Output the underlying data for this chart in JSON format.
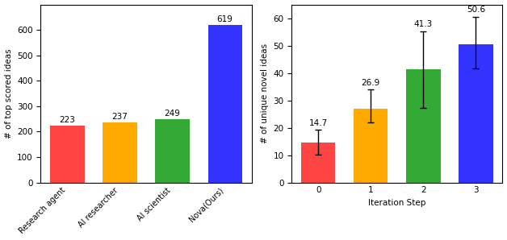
{
  "left": {
    "categories": [
      "Research agent",
      "AI researcher",
      "AI scientist",
      "Nova(Ours)"
    ],
    "values": [
      223,
      237,
      249,
      619
    ],
    "colors": [
      "#ff4444",
      "#ffaa00",
      "#33aa33",
      "#3333ff"
    ],
    "ylabel": "# of top scored ideas",
    "ylim": [
      0,
      700
    ],
    "yticks": [
      0,
      100,
      200,
      300,
      400,
      500,
      600
    ]
  },
  "right": {
    "categories": [
      "0",
      "1",
      "2",
      "3"
    ],
    "values": [
      14.7,
      26.9,
      41.3,
      50.6
    ],
    "errors_lower": [
      4.5,
      5.0,
      14.0,
      9.0
    ],
    "errors_upper": [
      4.5,
      7.0,
      14.0,
      10.0
    ],
    "colors": [
      "#ff4444",
      "#ffaa00",
      "#33aa33",
      "#3333ff"
    ],
    "ylabel": "# of unique novel ideas",
    "xlabel": "Iteration Step",
    "ylim": [
      0,
      65
    ],
    "yticks": [
      0,
      10,
      20,
      30,
      40,
      50,
      60
    ]
  }
}
